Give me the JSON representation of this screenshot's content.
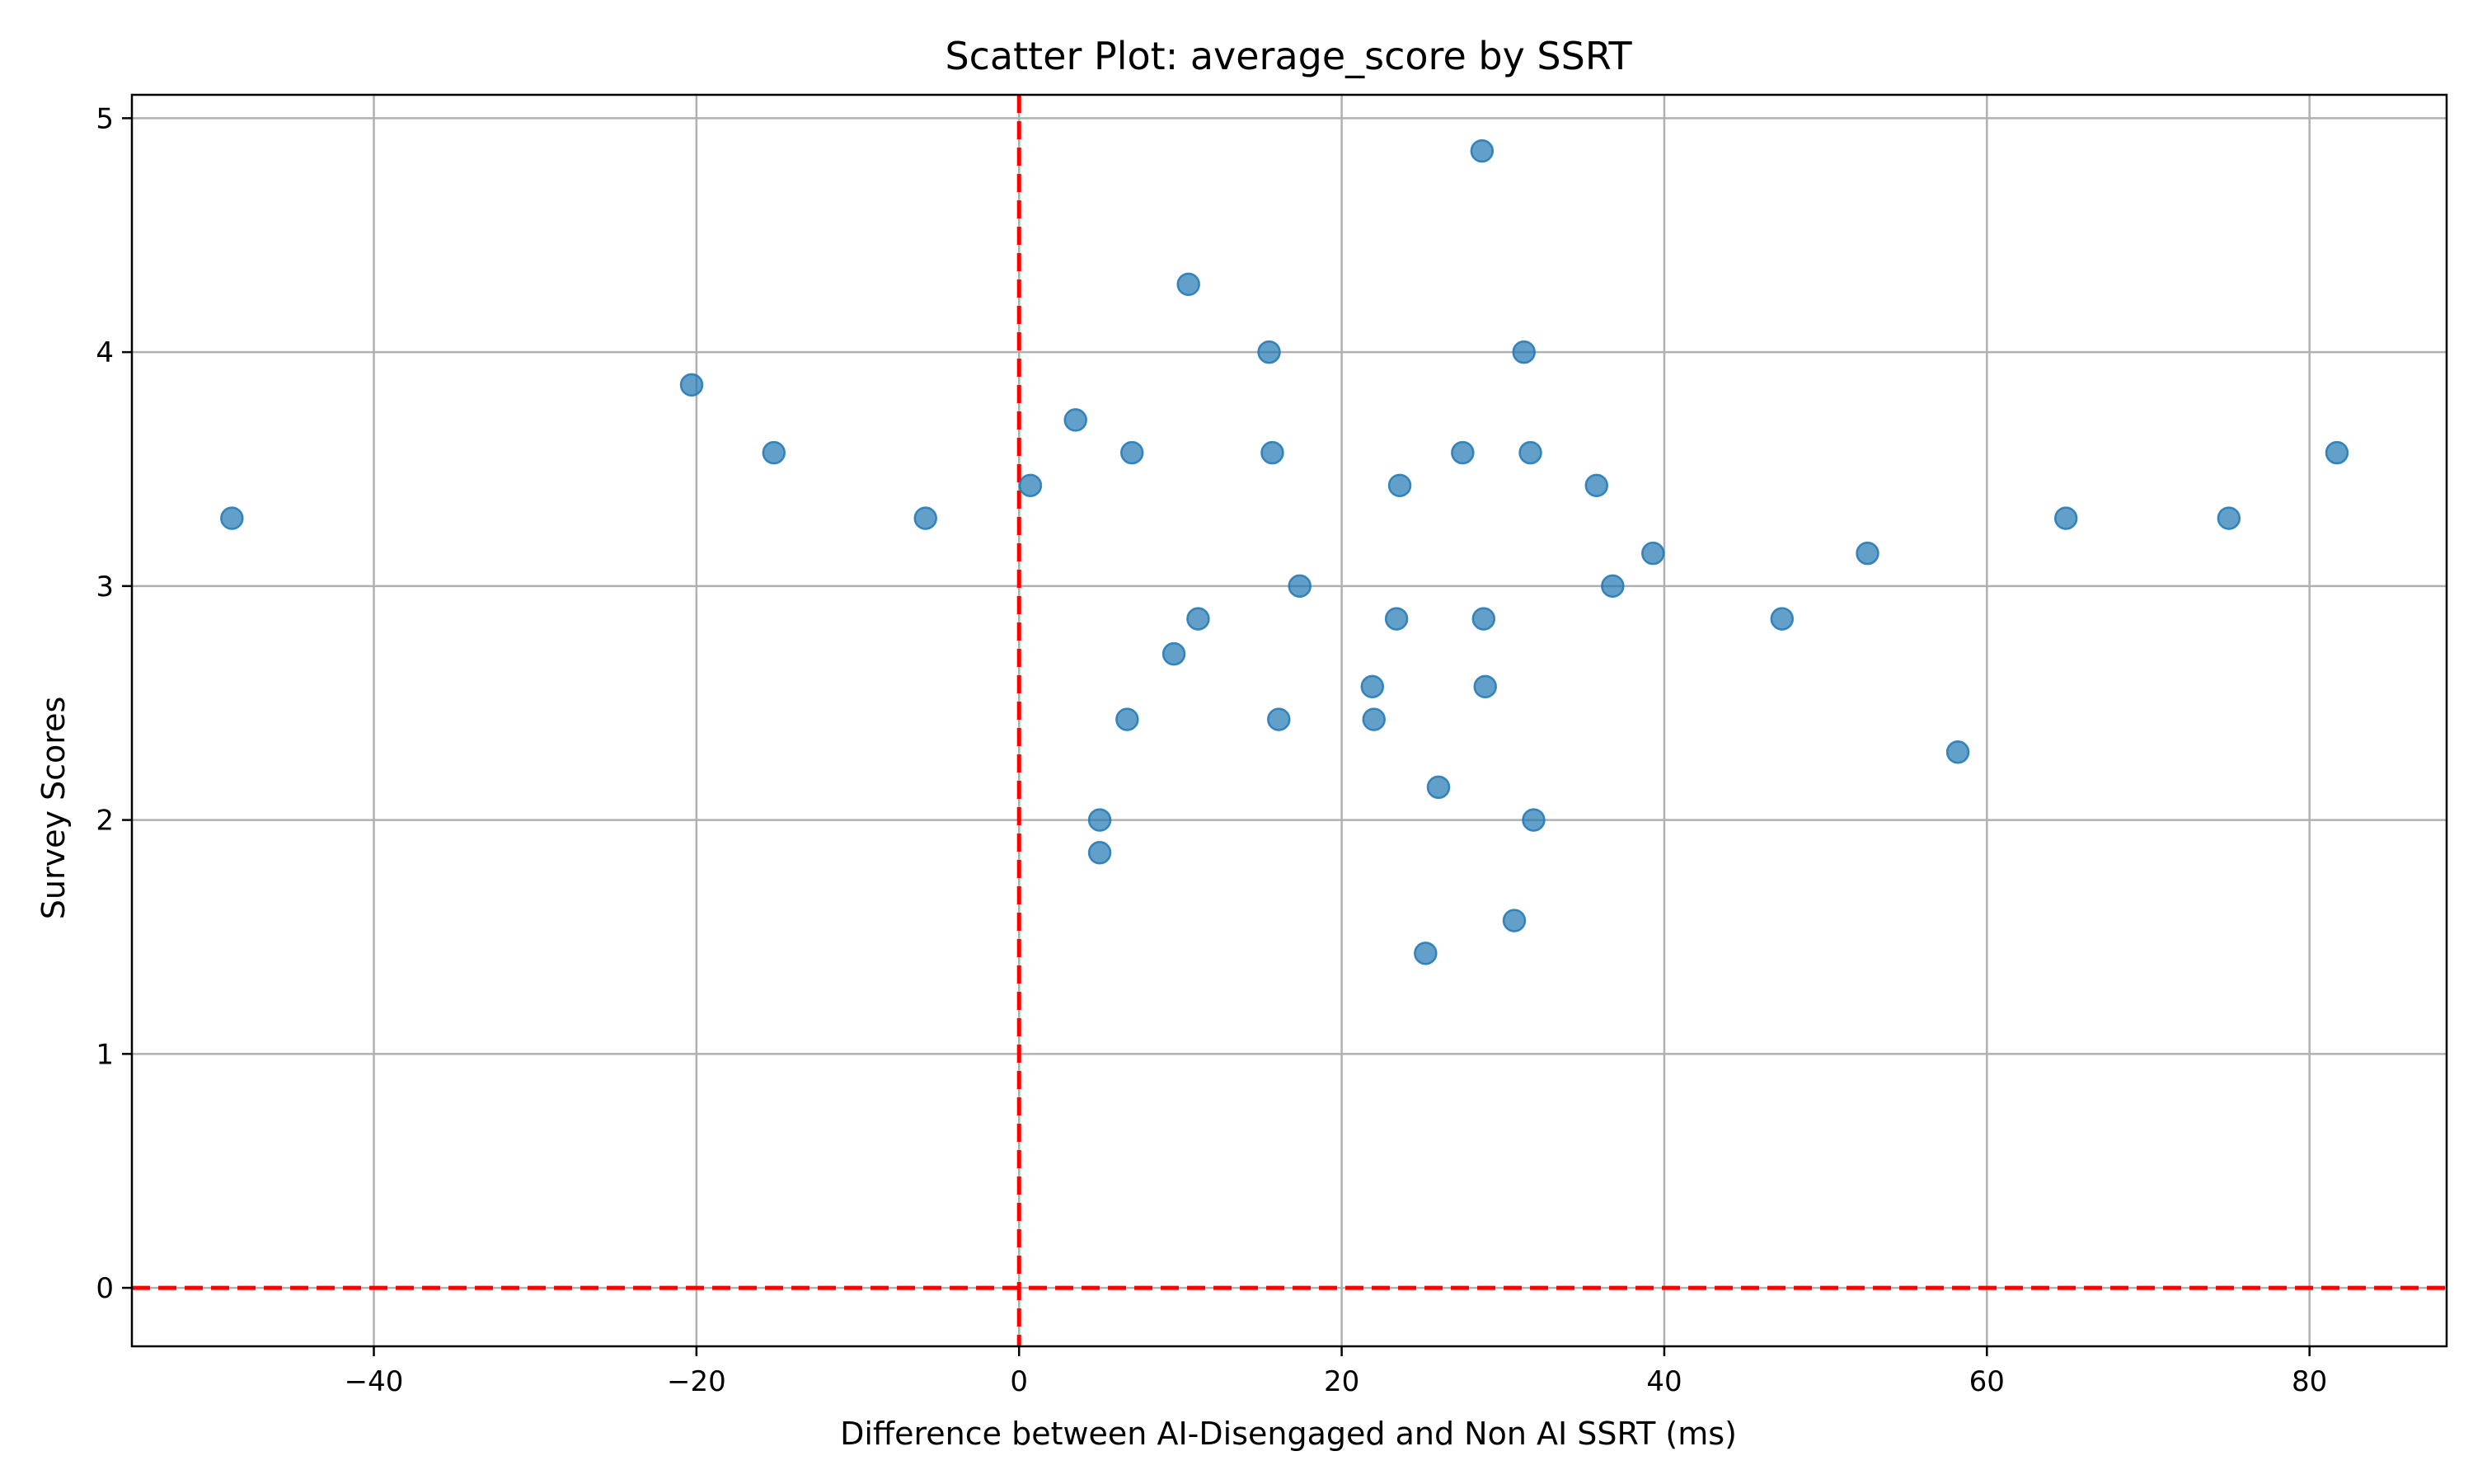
{
  "chart_data": {
    "type": "scatter",
    "title": "Scatter Plot: average_score by SSRT",
    "xlabel": "Difference between AI-Disengaged and Non AI SSRT (ms)",
    "ylabel": "Survey Scores",
    "xlim": [
      -55.0,
      88.5
    ],
    "ylim": [
      -0.25,
      5.1
    ],
    "xticks": [
      -40,
      -20,
      0,
      20,
      40,
      60,
      80
    ],
    "yticks": [
      0,
      1,
      2,
      3,
      4,
      5
    ],
    "xtick_labels": [
      "−40",
      "−20",
      "0",
      "20",
      "40",
      "60",
      "80"
    ],
    "ytick_labels": [
      "0",
      "1",
      "2",
      "3",
      "4",
      "5"
    ],
    "grid": true,
    "reference_lines": [
      {
        "orientation": "vertical",
        "value": 0,
        "style": "dashed",
        "color": "#ff0000"
      },
      {
        "orientation": "horizontal",
        "value": 0,
        "style": "dashed",
        "color": "#ff0000"
      }
    ],
    "point_color": "#1f77b4",
    "point_alpha": 0.7,
    "points": [
      {
        "x": -48.8,
        "y": 3.29
      },
      {
        "x": -20.3,
        "y": 3.86
      },
      {
        "x": -15.2,
        "y": 3.57
      },
      {
        "x": -5.8,
        "y": 3.29
      },
      {
        "x": 0.7,
        "y": 3.43
      },
      {
        "x": 3.5,
        "y": 3.71
      },
      {
        "x": 5.0,
        "y": 2.0
      },
      {
        "x": 5.0,
        "y": 1.86
      },
      {
        "x": 6.7,
        "y": 2.43
      },
      {
        "x": 7.0,
        "y": 3.57
      },
      {
        "x": 9.6,
        "y": 2.71
      },
      {
        "x": 10.5,
        "y": 4.29
      },
      {
        "x": 11.1,
        "y": 2.86
      },
      {
        "x": 15.5,
        "y": 4.0
      },
      {
        "x": 15.7,
        "y": 3.57
      },
      {
        "x": 16.1,
        "y": 2.43
      },
      {
        "x": 17.4,
        "y": 3.0
      },
      {
        "x": 21.9,
        "y": 2.57
      },
      {
        "x": 22.0,
        "y": 2.43
      },
      {
        "x": 23.4,
        "y": 2.86
      },
      {
        "x": 23.6,
        "y": 3.43
      },
      {
        "x": 25.2,
        "y": 1.43
      },
      {
        "x": 26.0,
        "y": 2.14
      },
      {
        "x": 27.5,
        "y": 3.57
      },
      {
        "x": 28.7,
        "y": 4.86
      },
      {
        "x": 28.8,
        "y": 2.86
      },
      {
        "x": 28.9,
        "y": 2.57
      },
      {
        "x": 30.7,
        "y": 1.57
      },
      {
        "x": 31.3,
        "y": 4.0
      },
      {
        "x": 31.7,
        "y": 3.57
      },
      {
        "x": 31.9,
        "y": 2.0
      },
      {
        "x": 35.8,
        "y": 3.43
      },
      {
        "x": 36.8,
        "y": 3.0
      },
      {
        "x": 39.3,
        "y": 3.14
      },
      {
        "x": 47.3,
        "y": 2.86
      },
      {
        "x": 52.6,
        "y": 3.14
      },
      {
        "x": 58.2,
        "y": 2.29
      },
      {
        "x": 64.9,
        "y": 3.29
      },
      {
        "x": 75.0,
        "y": 3.29
      },
      {
        "x": 81.7,
        "y": 3.57
      }
    ]
  }
}
